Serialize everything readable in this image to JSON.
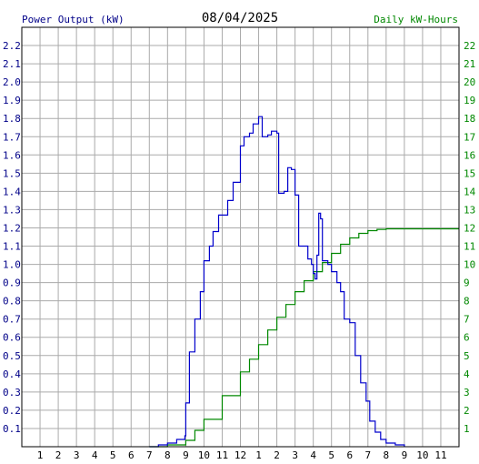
{
  "chart_data": {
    "type": "line",
    "title": "08/04/2025",
    "ylabel_left": "Power Output (kW)",
    "ylabel_right": "Daily kW-Hours",
    "xlabel": "",
    "x_tick_labels": [
      "1",
      "2",
      "3",
      "4",
      "5",
      "6",
      "7",
      "8",
      "9",
      "10",
      "11",
      "12",
      "1",
      "2",
      "3",
      "4",
      "5",
      "6",
      "7",
      "8",
      "9",
      "10",
      "11"
    ],
    "x_unit": "hour of day (0-24)",
    "xlim": [
      0,
      24
    ],
    "y_left_ticks": [
      "0.1",
      "0.2",
      "0.3",
      "0.4",
      "0.5",
      "0.6",
      "0.7",
      "0.8",
      "0.9",
      "1.0",
      "1.1",
      "1.2",
      "1.3",
      "1.4",
      "1.5",
      "1.6",
      "1.7",
      "1.8",
      "1.9",
      "2.0",
      "2.1",
      "2.2"
    ],
    "y_left_lim": [
      0,
      2.3
    ],
    "y_right_ticks": [
      "1",
      "2",
      "3",
      "4",
      "5",
      "6",
      "7",
      "8",
      "9",
      "10",
      "11",
      "12",
      "13",
      "14",
      "15",
      "16",
      "17",
      "18",
      "19",
      "20",
      "21",
      "22"
    ],
    "y_right_lim": [
      0,
      23
    ],
    "grid": true,
    "colors": {
      "power": "#0000cc",
      "energy": "#008800",
      "left_axis_text": "#000088",
      "right_axis_text": "#008800",
      "grid": "#aaaaaa",
      "frame": "#000000"
    },
    "series": [
      {
        "axis": "left",
        "points": [
          [
            7.0,
            0
          ],
          [
            7.5,
            0.01
          ],
          [
            8.0,
            0.02
          ],
          [
            8.5,
            0.04
          ],
          [
            8.95,
            0.06
          ],
          [
            9.0,
            0.24
          ],
          [
            9.2,
            0.52
          ],
          [
            9.5,
            0.7
          ],
          [
            9.8,
            0.85
          ],
          [
            10.0,
            1.02
          ],
          [
            10.3,
            1.1
          ],
          [
            10.5,
            1.18
          ],
          [
            10.8,
            1.27
          ],
          [
            11.0,
            1.27
          ],
          [
            11.3,
            1.35
          ],
          [
            11.6,
            1.45
          ],
          [
            12.0,
            1.65
          ],
          [
            12.2,
            1.7
          ],
          [
            12.5,
            1.72
          ],
          [
            12.7,
            1.77
          ],
          [
            13.0,
            1.81
          ],
          [
            13.2,
            1.7
          ],
          [
            13.5,
            1.71
          ],
          [
            13.7,
            1.73
          ],
          [
            14.0,
            1.72
          ],
          [
            14.1,
            1.39
          ],
          [
            14.4,
            1.4
          ],
          [
            14.6,
            1.53
          ],
          [
            14.8,
            1.52
          ],
          [
            15.0,
            1.38
          ],
          [
            15.2,
            1.1
          ],
          [
            15.5,
            1.1
          ],
          [
            15.7,
            1.03
          ],
          [
            15.9,
            1.0
          ],
          [
            16.0,
            0.95
          ],
          [
            16.1,
            0.92
          ],
          [
            16.2,
            1.05
          ],
          [
            16.3,
            1.28
          ],
          [
            16.4,
            1.25
          ],
          [
            16.5,
            1.02
          ],
          [
            16.8,
            1.0
          ],
          [
            17.0,
            0.96
          ],
          [
            17.3,
            0.9
          ],
          [
            17.5,
            0.85
          ],
          [
            17.7,
            0.7
          ],
          [
            18.0,
            0.68
          ],
          [
            18.3,
            0.5
          ],
          [
            18.6,
            0.35
          ],
          [
            18.9,
            0.25
          ],
          [
            19.1,
            0.14
          ],
          [
            19.4,
            0.08
          ],
          [
            19.7,
            0.04
          ],
          [
            20.0,
            0.02
          ],
          [
            20.5,
            0.01
          ],
          [
            21.0,
            0
          ]
        ]
      },
      {
        "axis": "right",
        "points": [
          [
            7.0,
            0
          ],
          [
            8.0,
            0.1
          ],
          [
            9.0,
            0.35
          ],
          [
            9.5,
            0.9
          ],
          [
            10.0,
            1.5
          ],
          [
            11.0,
            2.8
          ],
          [
            12.0,
            4.1
          ],
          [
            12.5,
            4.8
          ],
          [
            13.0,
            5.6
          ],
          [
            13.5,
            6.4
          ],
          [
            14.0,
            7.1
          ],
          [
            14.5,
            7.8
          ],
          [
            15.0,
            8.5
          ],
          [
            15.5,
            9.1
          ],
          [
            16.0,
            9.6
          ],
          [
            16.5,
            10.1
          ],
          [
            17.0,
            10.6
          ],
          [
            17.5,
            11.1
          ],
          [
            18.0,
            11.45
          ],
          [
            18.5,
            11.7
          ],
          [
            19.0,
            11.85
          ],
          [
            19.5,
            11.92
          ],
          [
            20.0,
            11.95
          ],
          [
            24.0,
            11.95
          ]
        ]
      }
    ]
  }
}
